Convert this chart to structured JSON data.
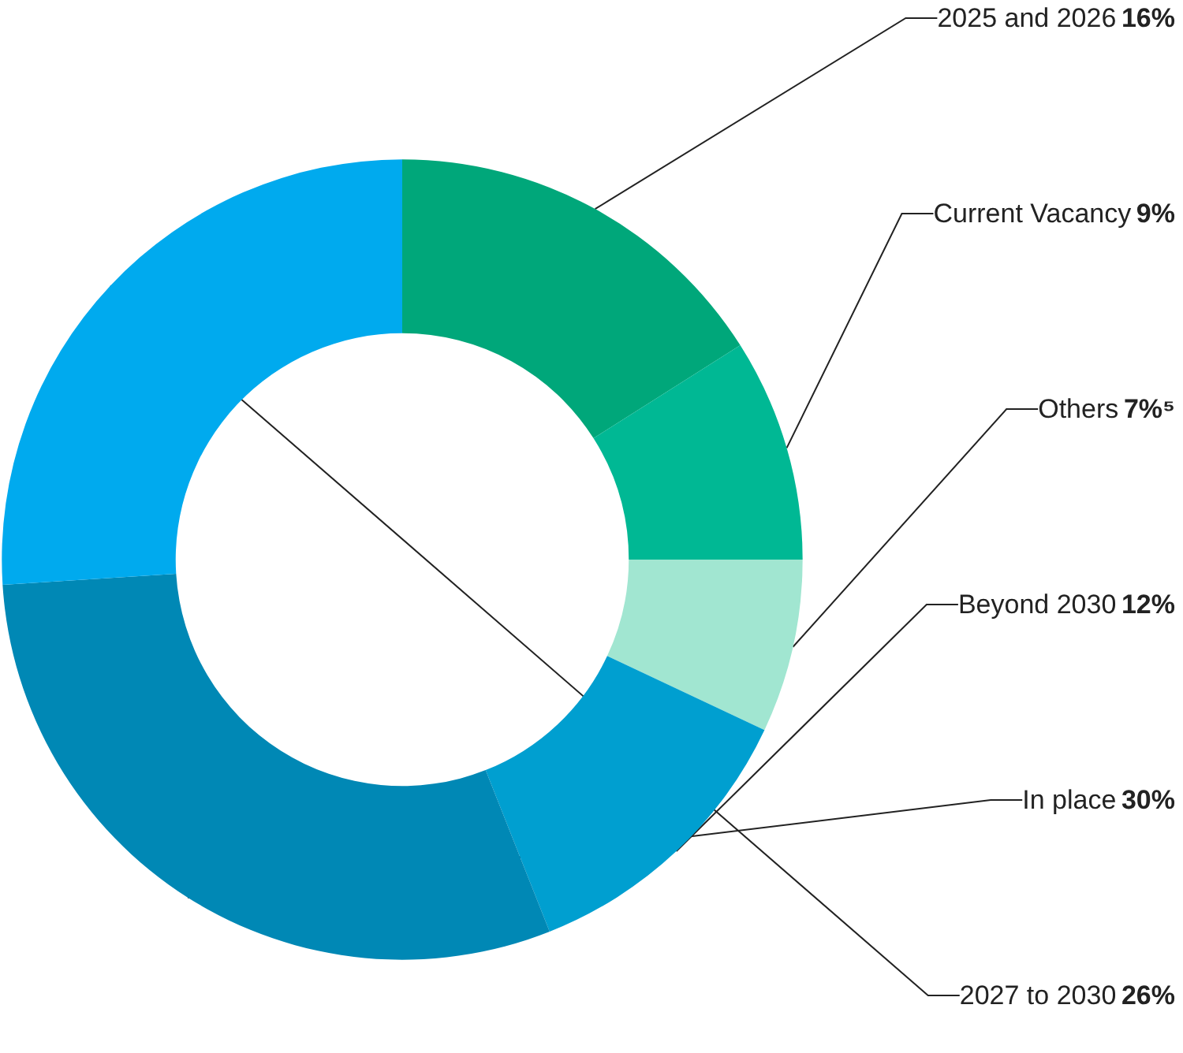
{
  "chart_data": {
    "type": "donut",
    "categories": [
      "2025 and 2026",
      "Current Vacancy",
      "Others",
      "Beyond 2030",
      "In place",
      "2027 to 2030"
    ],
    "values": [
      16,
      9,
      7,
      12,
      30,
      26
    ],
    "value_labels": [
      "16%",
      "9%",
      "7%⁵",
      "12%",
      "30%",
      "26%"
    ],
    "colors": [
      "#00a77a",
      "#00b894",
      "#a1e6d1",
      "#009fd0",
      "#0088b5",
      "#00aaee"
    ],
    "legend": false
  }
}
